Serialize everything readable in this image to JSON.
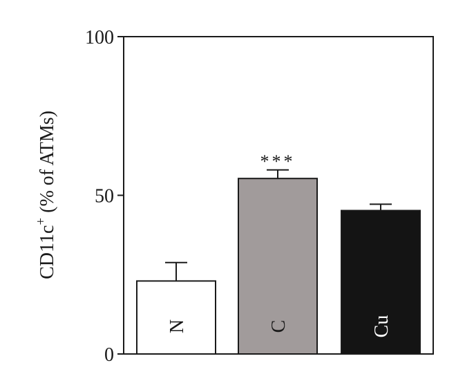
{
  "chart_data": {
    "type": "bar",
    "categories": [
      "N",
      "C",
      "Cu"
    ],
    "values": [
      23,
      55.3,
      45.2
    ],
    "errors": [
      5.8,
      2.7,
      2.0
    ],
    "bar_colors": [
      "#ffffff",
      "#a19b9b",
      "#141414"
    ],
    "label_colors": [
      "#1a1a1a",
      "#1a1a1a",
      "#ffffff"
    ],
    "significance": [
      "",
      "***",
      ""
    ],
    "ylabel_main": "CD11c",
    "ylabel_sup": "+",
    "ylabel_rest": " (% of ATMs)",
    "yticks": [
      0,
      50,
      100
    ],
    "ylim": [
      0,
      100
    ],
    "title": "",
    "xlabel": "",
    "grid": false,
    "legend": "none"
  }
}
